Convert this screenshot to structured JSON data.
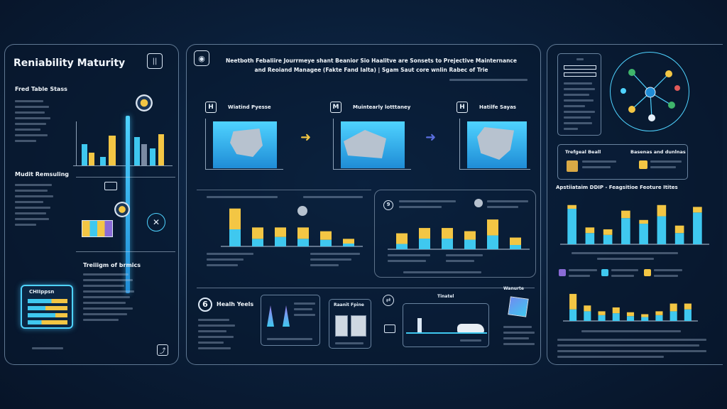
{
  "left": {
    "title": "Reniability Maturity",
    "section1": "Fred Table Stass",
    "section2": "Mudit Remsuling",
    "section3": "Treiiigm of brmics",
    "badge_title": "CHIIppsn"
  },
  "main": {
    "title_line1": "Neetboth Febaliire Jourrmeye shant Beanior Sio Haalitve are Sonsets to Prejective Mainternance",
    "title_line2": "and Reoiand Managee (Fakte Fand Ialta) | Sgam Saut core wnlin Rabec of Trie",
    "steps": [
      {
        "icon": "H",
        "label": "Wiatind Pyesse"
      },
      {
        "icon": "M",
        "label": "Muintearly lotttaney"
      },
      {
        "icon": "H",
        "label": "Hatilfe Sayas"
      }
    ],
    "health_number": "6",
    "health_label": "Healh Yeels",
    "card_label_a": "Raanit Fpine",
    "card_label_b": "Tinatel",
    "card_label_c": "Wanurte",
    "subcard_number": "9"
  },
  "right": {
    "feature_a": "Trefgeal Beall",
    "feature_b": "Basenas and dunlnas",
    "chart_title": "Apstiiataim DDIP - Feagsitioe Feoture Itites"
  },
  "chart_data": [
    {
      "type": "bar",
      "stacked": true,
      "series": [
        {
          "values": [
            18,
            8,
            10,
            8,
            7,
            3
          ]
        },
        {
          "values": [
            22,
            12,
            10,
            12,
            9,
            5
          ]
        }
      ],
      "colors": [
        "#3fc8ef",
        "#f3c644"
      ]
    },
    {
      "type": "bar",
      "stacked": true,
      "series": [
        {
          "values": [
            5,
            10,
            10,
            9,
            13,
            4
          ]
        },
        {
          "values": [
            10,
            10,
            10,
            8,
            15,
            7
          ]
        }
      ],
      "colors": [
        "#3fc8ef",
        "#f3c644"
      ]
    },
    {
      "type": "bar",
      "stacked": true,
      "series": [
        {
          "values": [
            38,
            12,
            10,
            28,
            22,
            30,
            12,
            34
          ]
        },
        {
          "values": [
            4,
            6,
            6,
            8,
            4,
            12,
            8,
            6
          ]
        }
      ],
      "colors": [
        "#3fc8ef",
        "#f3c644"
      ]
    },
    {
      "type": "bar",
      "stacked": true,
      "series": [
        {
          "values": [
            12,
            10,
            6,
            8,
            5,
            4,
            6,
            10,
            12
          ]
        },
        {
          "values": [
            16,
            6,
            4,
            6,
            4,
            3,
            4,
            8,
            6
          ]
        }
      ],
      "colors": [
        "#3fc8ef",
        "#f3c644"
      ]
    }
  ]
}
